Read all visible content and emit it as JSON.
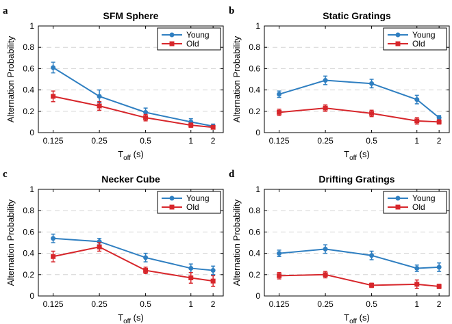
{
  "figure": {
    "colors": {
      "young": "#2f7fc1",
      "old": "#d7262b",
      "grid": "#d3d3d3",
      "axis": "#000000"
    },
    "legend_labels": [
      "Young",
      "Old"
    ],
    "xlabel": {
      "main": "T",
      "sub": "off",
      "unit": " (s)"
    },
    "ylabel": "Alternation Probability"
  },
  "chart_data": [
    {
      "panel": "a",
      "type": "line",
      "title": "SFM Sphere",
      "categories": [
        "0.125",
        "0.25",
        "0.5",
        "1",
        "2"
      ],
      "ylim": [
        0,
        1
      ],
      "yticks": [
        "0",
        "0.2",
        "0.4",
        "0.6",
        "0.8",
        "1"
      ],
      "series": [
        {
          "name": "Young",
          "values": [
            0.61,
            0.34,
            0.19,
            0.1,
            0.06
          ],
          "errors": [
            0.05,
            0.06,
            0.04,
            0.03,
            0.02
          ]
        },
        {
          "name": "Old",
          "values": [
            0.34,
            0.25,
            0.14,
            0.07,
            0.05
          ],
          "errors": [
            0.05,
            0.04,
            0.03,
            0.02,
            0.01
          ]
        }
      ],
      "legend": "top-right"
    },
    {
      "panel": "b",
      "type": "line",
      "title": "Static Gratings",
      "categories": [
        "0.125",
        "0.25",
        "0.5",
        "1",
        "2"
      ],
      "ylim": [
        0,
        1
      ],
      "yticks": [
        "0",
        "0.2",
        "0.4",
        "0.6",
        "0.8",
        "1"
      ],
      "series": [
        {
          "name": "Young",
          "values": [
            0.36,
            0.49,
            0.46,
            0.31,
            0.14
          ],
          "errors": [
            0.03,
            0.04,
            0.04,
            0.04,
            0.02
          ]
        },
        {
          "name": "Old",
          "values": [
            0.19,
            0.23,
            0.18,
            0.11,
            0.1
          ],
          "errors": [
            0.03,
            0.03,
            0.03,
            0.03,
            0.02
          ]
        }
      ],
      "legend": "top-right"
    },
    {
      "panel": "c",
      "type": "line",
      "title": "Necker Cube",
      "categories": [
        "0.125",
        "0.25",
        "0.5",
        "1",
        "2"
      ],
      "ylim": [
        0,
        1
      ],
      "yticks": [
        "0",
        "0.2",
        "0.4",
        "0.6",
        "0.8",
        "1"
      ],
      "series": [
        {
          "name": "Young",
          "values": [
            0.54,
            0.51,
            0.36,
            0.26,
            0.24
          ],
          "errors": [
            0.04,
            0.03,
            0.04,
            0.04,
            0.04
          ]
        },
        {
          "name": "Old",
          "values": [
            0.37,
            0.46,
            0.24,
            0.17,
            0.14
          ],
          "errors": [
            0.05,
            0.04,
            0.03,
            0.05,
            0.05
          ]
        }
      ],
      "legend": "top-right"
    },
    {
      "panel": "d",
      "type": "line",
      "title": "Drifting Gratings",
      "categories": [
        "0.125",
        "0.25",
        "0.5",
        "1",
        "2"
      ],
      "ylim": [
        0,
        1
      ],
      "yticks": [
        "0",
        "0.2",
        "0.4",
        "0.6",
        "0.8",
        "1"
      ],
      "series": [
        {
          "name": "Young",
          "values": [
            0.4,
            0.44,
            0.38,
            0.26,
            0.27
          ],
          "errors": [
            0.03,
            0.04,
            0.04,
            0.03,
            0.04
          ]
        },
        {
          "name": "Old",
          "values": [
            0.19,
            0.2,
            0.1,
            0.11,
            0.09
          ],
          "errors": [
            0.03,
            0.03,
            0.02,
            0.04,
            0.02
          ]
        }
      ],
      "legend": "top-right"
    }
  ]
}
